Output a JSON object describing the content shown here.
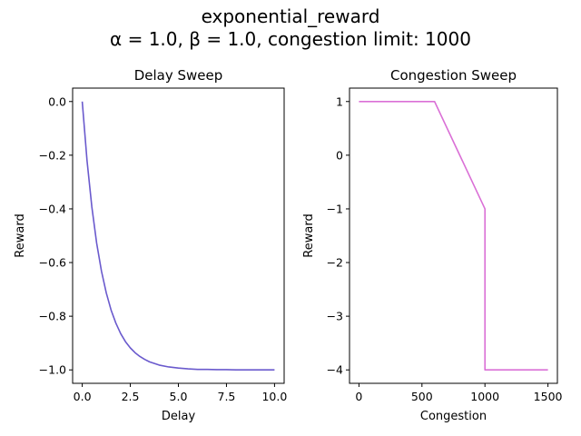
{
  "figure": {
    "title_line1": "exponential_reward",
    "title_line2": "α = 1.0, β = 1.0, congestion limit: 1000"
  },
  "chart_data": [
    {
      "type": "line",
      "title": "Delay Sweep",
      "xlabel": "Delay",
      "ylabel": "Reward",
      "xlim": [
        -0.5,
        10.5
      ],
      "ylim": [
        -1.05,
        0.05
      ],
      "xticks": [
        0,
        2.5,
        5,
        7.5,
        10
      ],
      "xtick_labels": [
        "0.0",
        "2.5",
        "5.0",
        "7.5",
        "10.0"
      ],
      "yticks": [
        0,
        -0.2,
        -0.4,
        -0.6,
        -0.8,
        -1.0
      ],
      "ytick_labels": [
        "0.0",
        "−0.2",
        "−0.4",
        "−0.6",
        "−0.8",
        "−1.0"
      ],
      "grid": false,
      "series": [
        {
          "color": "#6a5acd",
          "x": [
            0,
            0.25,
            0.5,
            0.75,
            1,
            1.25,
            1.5,
            1.75,
            2,
            2.25,
            2.5,
            2.75,
            3,
            3.25,
            3.5,
            3.75,
            4,
            4.5,
            5,
            5.5,
            6,
            6.5,
            7,
            7.5,
            8,
            8.5,
            9,
            9.5,
            10
          ],
          "y": [
            0,
            -0.221,
            -0.393,
            -0.528,
            -0.632,
            -0.713,
            -0.777,
            -0.826,
            -0.865,
            -0.895,
            -0.918,
            -0.936,
            -0.95,
            -0.961,
            -0.97,
            -0.976,
            -0.982,
            -0.989,
            -0.993,
            -0.996,
            -0.998,
            -0.998,
            -0.999,
            -0.999,
            -1.0,
            -1.0,
            -1.0,
            -1.0,
            -1.0
          ]
        }
      ]
    },
    {
      "type": "line",
      "title": "Congestion Sweep",
      "xlabel": "Congestion",
      "ylabel": "Reward",
      "xlim": [
        -75,
        1575
      ],
      "ylim": [
        -4.25,
        1.25
      ],
      "xticks": [
        0,
        500,
        1000,
        1500
      ],
      "xtick_labels": [
        "0",
        "500",
        "1000",
        "1500"
      ],
      "yticks": [
        1,
        0,
        -1,
        -2,
        -3,
        -4
      ],
      "ytick_labels": [
        "1",
        "0",
        "−1",
        "−2",
        "−3",
        "−4"
      ],
      "grid": false,
      "series": [
        {
          "color": "#da70d6",
          "x": [
            0,
            600,
            1000,
            1000,
            1500
          ],
          "y": [
            1,
            1,
            -1,
            -4,
            -4
          ]
        }
      ]
    }
  ]
}
